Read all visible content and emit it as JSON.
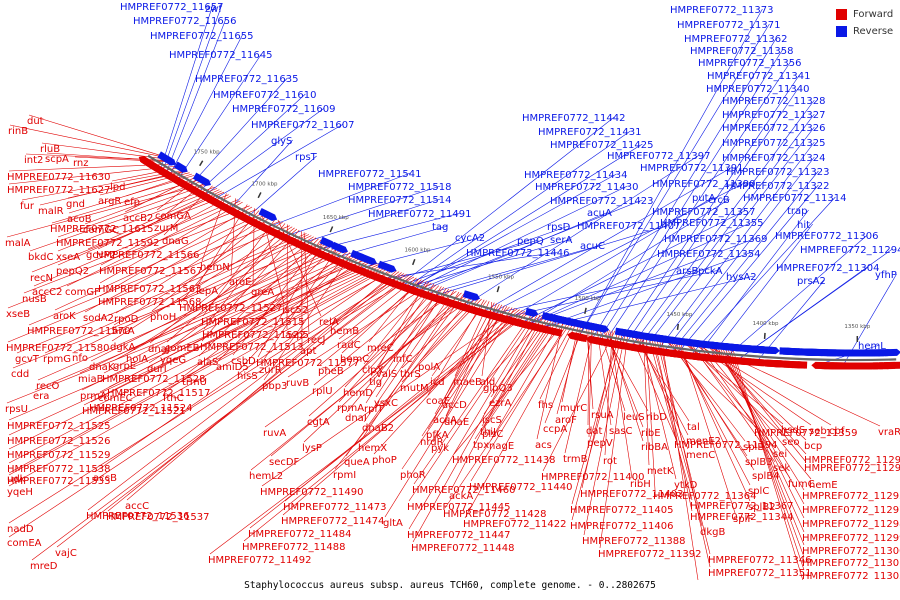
{
  "caption": "Staphylococcus aureus subsp. aureus TCH60, complete genome. - 0..2802675",
  "legend": [
    {
      "label": "Forward",
      "color": "#e00000"
    },
    {
      "label": "Reverse",
      "color": "#0a18e6"
    }
  ],
  "colors": {
    "forward": "#e00000",
    "reverse": "#0a18e6",
    "backbone": "#666666",
    "tick_label": "#555555"
  },
  "ticks": [
    "1750 kbp",
    "1700 kbp",
    "1650 kbp",
    "1600 kbp",
    "1550 kbp",
    "1500 kbp",
    "1450 kbp",
    "1400 kbp",
    "1350 kbp"
  ],
  "reverse_labels": [
    "HMPREF0772_11657",
    "zwf",
    "HMPREF0772_11656",
    "HMPREF0772_11655",
    "HMPREF0772_11645",
    "HMPREF0772_11635",
    "HMPREF0772_11610",
    "HMPREF0772_11609",
    "HMPREF0772_11607",
    "glyS",
    "rpsT",
    "HMPREF0772_11541",
    "HMPREF0772_11518",
    "HMPREF0772_11514",
    "HMPREF0772_11491",
    "tag",
    "cycA2",
    "HMPREF0772_11446",
    "pepQ",
    "rpsD",
    "serA",
    "acuC",
    "acuA",
    "HMPREF0772_11442",
    "HMPREF0772_11431",
    "HMPREF0772_11425",
    "HMPREF0772_11434",
    "HMPREF0772_11430",
    "HMPREF0772_11423",
    "HMPREF0772_11407",
    "HMPREF0772_11397",
    "HMPREF0772_11391",
    "HMPREF0772_11390",
    "putA",
    "arsB",
    "pckA",
    "hysA2",
    "crcB",
    "HMPREF0772_11357",
    "HMPREF0772_11355",
    "HMPREF0772_11369",
    "HMPREF0772_11354",
    "HMPREF0772_11373",
    "HMPREF0772_11371",
    "HMPREF0772_11362",
    "HMPREF0772_11358",
    "HMPREF0772_11356",
    "HMPREF0772_11341",
    "HMPREF0772_11340",
    "HMPREF0772_11328",
    "HMPREF0772_11327",
    "HMPREF0772_11326",
    "HMPREF0772_11325",
    "HMPREF0772_11324",
    "HMPREF0772_11323",
    "HMPREF0772_11322",
    "HMPREF0772_11314",
    "trap",
    "hit",
    "HMPREF0772_11306",
    "HMPREF0772_11294",
    "HMPREF0772_11304",
    "prsA2",
    "hemL",
    "yfhP"
  ],
  "forward_labels": [
    "dut",
    "rinB",
    "rluB",
    "int2",
    "scpA",
    "rnz",
    "HMPREF0772_11630",
    "HMPREF0772_11627",
    "lpd",
    "fur",
    "malR",
    "gnd",
    "argR",
    "efp",
    "acoB",
    "accB2",
    "comGA",
    "HMPREF0772_11615",
    "comGC",
    "zurM",
    "malA",
    "HMPREF0772_11592",
    "dnaG",
    "bkdC",
    "xseA",
    "gcvP2",
    "HMPREF0772_11566",
    "pepQ2",
    "hemN",
    "recN",
    "HMPREF0772_11567",
    "aroE",
    "accC2",
    "comGF",
    "HMPREF0772_11563",
    "lepA",
    "nusB",
    "HMPREF0772_11568",
    "greA",
    "xseB",
    "HMPREF0772_11527",
    "isc52",
    "aroK",
    "sodA2",
    "rpoD",
    "phoH",
    "HMPREF0772_11515",
    "relA",
    "HMPREF0772_11570",
    "hrcA",
    "HMPREF0772_11522",
    "asp5",
    "HMPREF0772_11580",
    "dgkA",
    "dnaJ",
    "comEB",
    "HMPREF0772_11513",
    "apt",
    "recJ",
    "gcvT",
    "rpmG",
    "nfo",
    "holA",
    "yqeG",
    "alaS",
    "csbD",
    "HMPREF0772_11577",
    "cdd",
    "dnaK",
    "grpE",
    "durI",
    "amiD5",
    "zurR",
    "recO",
    "miaB",
    "HMPREF0772_11528",
    "trmU",
    "hisS",
    "pbp3",
    "era",
    "prmA",
    "comEC",
    "HMPREF0772_11517",
    "fthC",
    "rpsU",
    "HMPREF0772_11521",
    "HMPREF0772_11524",
    "HMPREF0772_11525",
    "HMPREF0772_11526",
    "HMPREF0772_11529",
    "HMPREF0772_11538",
    "udk",
    "HMPREF0772_11533",
    "accB",
    "yqeH",
    "accC",
    "HMPREF0772_11536",
    "HMPREF0772_11537",
    "nadD",
    "comEA",
    "vajC",
    "mreD",
    "hemB",
    "radC",
    "mreC",
    "hemC",
    "pheB",
    "valS",
    "clpX",
    "ruvB",
    "tig",
    "rplU",
    "hemD",
    "rplT",
    "rpmA",
    "ysxC",
    "dnaI",
    "cgtA",
    "dnaB2",
    "ruvA",
    "hemX",
    "lysP",
    "queA",
    "secDF",
    "hemL2",
    "rpmI",
    "infC",
    "thrS",
    "polA",
    "mutM",
    "coaE",
    "icd",
    "maeB",
    "ald",
    "accD",
    "dnaE",
    "accA",
    "pfkA",
    "pyk",
    "nrdR",
    "phoP",
    "phoR",
    "gltA",
    "HMPREF0772_11490",
    "HMPREF0772_11473",
    "HMPREF0772_11474",
    "HMPREF0772_11484",
    "HMPREF0772_11488",
    "HMPREF0772_11492",
    "HMPREF0772_11460",
    "HMPREF0772_11445",
    "HMPREF0772_11447",
    "HMPREF0772_11448",
    "ackA",
    "glpQ3",
    "ezrA",
    "iscS",
    "thiI",
    "tpx",
    "plsC",
    "nagE",
    "acs",
    "HMPREF0772_11438",
    "HMPREF0772_11440",
    "HMPREF0772_11428",
    "HMPREF0772_11422",
    "fhs",
    "murC",
    "aroF",
    "ccpA",
    "rsuA",
    "dat",
    "pepV",
    "trmB",
    "sasC",
    "leuS",
    "ribD",
    "ribE",
    "ribBA",
    "ribH",
    "rot",
    "HMPREF0772_11400",
    "HMPREF0772_11403",
    "HMPREF0772_11405",
    "HMPREF0772_11406",
    "HMPREF0772_11388",
    "HMPREF0772_11392",
    "HMPREF0772_11394",
    "tal",
    "menE2",
    "menC",
    "ytkD",
    "metK",
    "HMPREF0772_11364",
    "HMPREF0772_11367",
    "dkgB",
    "HMPREF0772_11344",
    "HMPREF0772_11346",
    "HMPREF0772_11351",
    "HMPREF0772_11353",
    "HMPREF0772_11359",
    "splB",
    "splB3",
    "splB4",
    "splC",
    "splB2",
    "splF",
    "hsdS",
    "seo",
    "sei",
    "sek",
    "seb",
    "cbf",
    "fumC",
    "hemE",
    "vraR2",
    "bcp",
    "HMPREF0772_11291",
    "HMPREF0772_11292",
    "HMPREF0772_11295",
    "HMPREF0772_11297",
    "HMPREF0772_11298",
    "HMPREF0772_11299",
    "HMPREF0772_11300",
    "HMPREF0772_11301",
    "HMPREF0772_11305",
    "HMPREF0772_11308",
    "HMPREF0772_11309"
  ]
}
